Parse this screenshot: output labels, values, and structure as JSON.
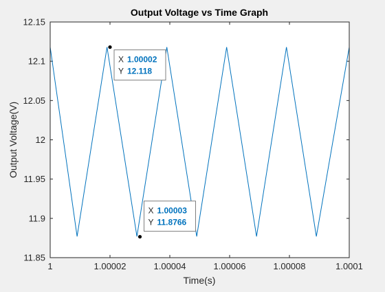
{
  "colors": {
    "figure_bg": "#f0f0f0",
    "axes_bg": "#ffffff",
    "line": "#0072bd",
    "axis": "#262626",
    "datatip_value": "#0072bd",
    "datatip_border": "#7f7f7f"
  },
  "chart_data": {
    "type": "line",
    "title": "Output Voltage vs Time Graph",
    "xlabel": "Time(s)",
    "ylabel": "Output Voltage(V)",
    "xlim": [
      1.0,
      1.0001
    ],
    "ylim": [
      11.85,
      12.15
    ],
    "grid": false,
    "xticks": [
      1.0,
      1.00002,
      1.00004,
      1.00006,
      1.00008,
      1.0001
    ],
    "xtick_labels": [
      "1",
      "1.00002",
      "1.00004",
      "1.00006",
      "1.00008",
      "1.0001"
    ],
    "yticks": [
      11.85,
      11.9,
      11.95,
      12.0,
      12.05,
      12.1,
      12.15
    ],
    "ytick_labels": [
      "11.85",
      "11.9",
      "11.95",
      "12",
      "12.05",
      "12.1",
      "12.15"
    ],
    "series": [
      {
        "x": [
          1.0,
          1.000009,
          1.000019,
          1.000029,
          1.000039,
          1.000049,
          1.000059,
          1.000069,
          1.000079,
          1.000089,
          1.0001
        ],
        "y": [
          12.118,
          11.877,
          12.118,
          11.877,
          12.118,
          11.877,
          12.118,
          11.877,
          12.118,
          11.877,
          12.118
        ]
      }
    ],
    "datatips": [
      {
        "x": 1.00002,
        "y": 12.118,
        "x_label": "X",
        "y_label": "Y",
        "x_text": "1.00002",
        "y_text": "12.118"
      },
      {
        "x": 1.00003,
        "y": 11.8766,
        "x_label": "X",
        "y_label": "Y",
        "x_text": "1.00003",
        "y_text": "11.8766"
      }
    ]
  }
}
